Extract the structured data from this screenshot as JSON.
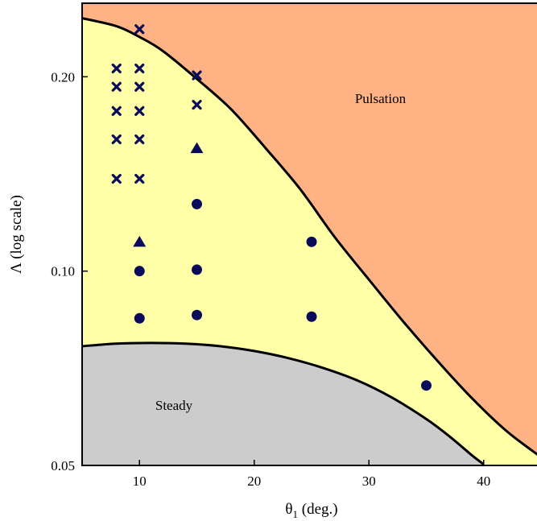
{
  "chart_data": {
    "type": "scatter",
    "xlabel": "θ1 (deg.)",
    "ylabel": "Λ (log scale)",
    "xlim": [
      5,
      45
    ],
    "ylim": [
      0.05,
      0.26
    ],
    "y_scale": "log",
    "x_ticks": [
      10,
      20,
      30,
      40
    ],
    "y_ticks": [
      0.05,
      0.1,
      0.2
    ],
    "y_tick_labels": [
      "0.05",
      "0.10",
      "0.20"
    ],
    "colors": {
      "pulsation": "#ffb283",
      "intermediate": "#ffffa8",
      "steady": "#cccccc",
      "markers": "#0a0a5a",
      "boundary": "#000000"
    },
    "regions": [
      {
        "key": "pulsation",
        "label": "Pulsation",
        "label_at": {
          "x": 31,
          "y": 0.182
        }
      },
      {
        "key": "steady",
        "label": "Steady",
        "label_at": {
          "x": 13,
          "y": 0.061
        }
      }
    ],
    "boundaries": {
      "upper": [
        {
          "x": 5,
          "y": 0.2465
        },
        {
          "x": 8,
          "y": 0.2395
        },
        {
          "x": 10,
          "y": 0.2305
        },
        {
          "x": 12,
          "y": 0.2195
        },
        {
          "x": 15,
          "y": 0.1985
        },
        {
          "x": 18,
          "y": 0.178
        },
        {
          "x": 21,
          "y": 0.155
        },
        {
          "x": 24,
          "y": 0.134
        },
        {
          "x": 27,
          "y": 0.113
        },
        {
          "x": 30,
          "y": 0.097
        },
        {
          "x": 33,
          "y": 0.0835
        },
        {
          "x": 36,
          "y": 0.0725
        },
        {
          "x": 39,
          "y": 0.0635
        },
        {
          "x": 42,
          "y": 0.0565
        },
        {
          "x": 45,
          "y": 0.0515
        }
      ],
      "lower": [
        {
          "x": 5,
          "y": 0.0765
        },
        {
          "x": 8,
          "y": 0.0772
        },
        {
          "x": 11,
          "y": 0.0774
        },
        {
          "x": 14,
          "y": 0.0772
        },
        {
          "x": 17,
          "y": 0.0765
        },
        {
          "x": 20,
          "y": 0.0752
        },
        {
          "x": 23,
          "y": 0.0733
        },
        {
          "x": 26,
          "y": 0.0708
        },
        {
          "x": 29,
          "y": 0.0677
        },
        {
          "x": 32,
          "y": 0.0637
        },
        {
          "x": 35,
          "y": 0.059
        },
        {
          "x": 37,
          "y": 0.0555
        },
        {
          "x": 39,
          "y": 0.0518
        },
        {
          "x": 40,
          "y": 0.0502
        }
      ]
    },
    "series": [
      {
        "marker": "cross",
        "points": [
          {
            "x": 8,
            "y": 0.206
          },
          {
            "x": 8,
            "y": 0.193
          },
          {
            "x": 8,
            "y": 0.177
          },
          {
            "x": 8,
            "y": 0.16
          },
          {
            "x": 8,
            "y": 0.139
          },
          {
            "x": 10,
            "y": 0.237
          },
          {
            "x": 10,
            "y": 0.206
          },
          {
            "x": 10,
            "y": 0.193
          },
          {
            "x": 10,
            "y": 0.177
          },
          {
            "x": 10,
            "y": 0.16
          },
          {
            "x": 10,
            "y": 0.139
          },
          {
            "x": 15,
            "y": 0.201
          },
          {
            "x": 15,
            "y": 0.181
          }
        ]
      },
      {
        "marker": "triangle",
        "points": [
          {
            "x": 10,
            "y": 0.111
          },
          {
            "x": 15,
            "y": 0.155
          }
        ]
      },
      {
        "marker": "circle",
        "points": [
          {
            "x": 10,
            "y": 0.1
          },
          {
            "x": 10,
            "y": 0.0845
          },
          {
            "x": 15,
            "y": 0.127
          },
          {
            "x": 15,
            "y": 0.1005
          },
          {
            "x": 15,
            "y": 0.0855
          },
          {
            "x": 25,
            "y": 0.111
          },
          {
            "x": 25,
            "y": 0.085
          },
          {
            "x": 35,
            "y": 0.0665
          }
        ]
      }
    ]
  }
}
